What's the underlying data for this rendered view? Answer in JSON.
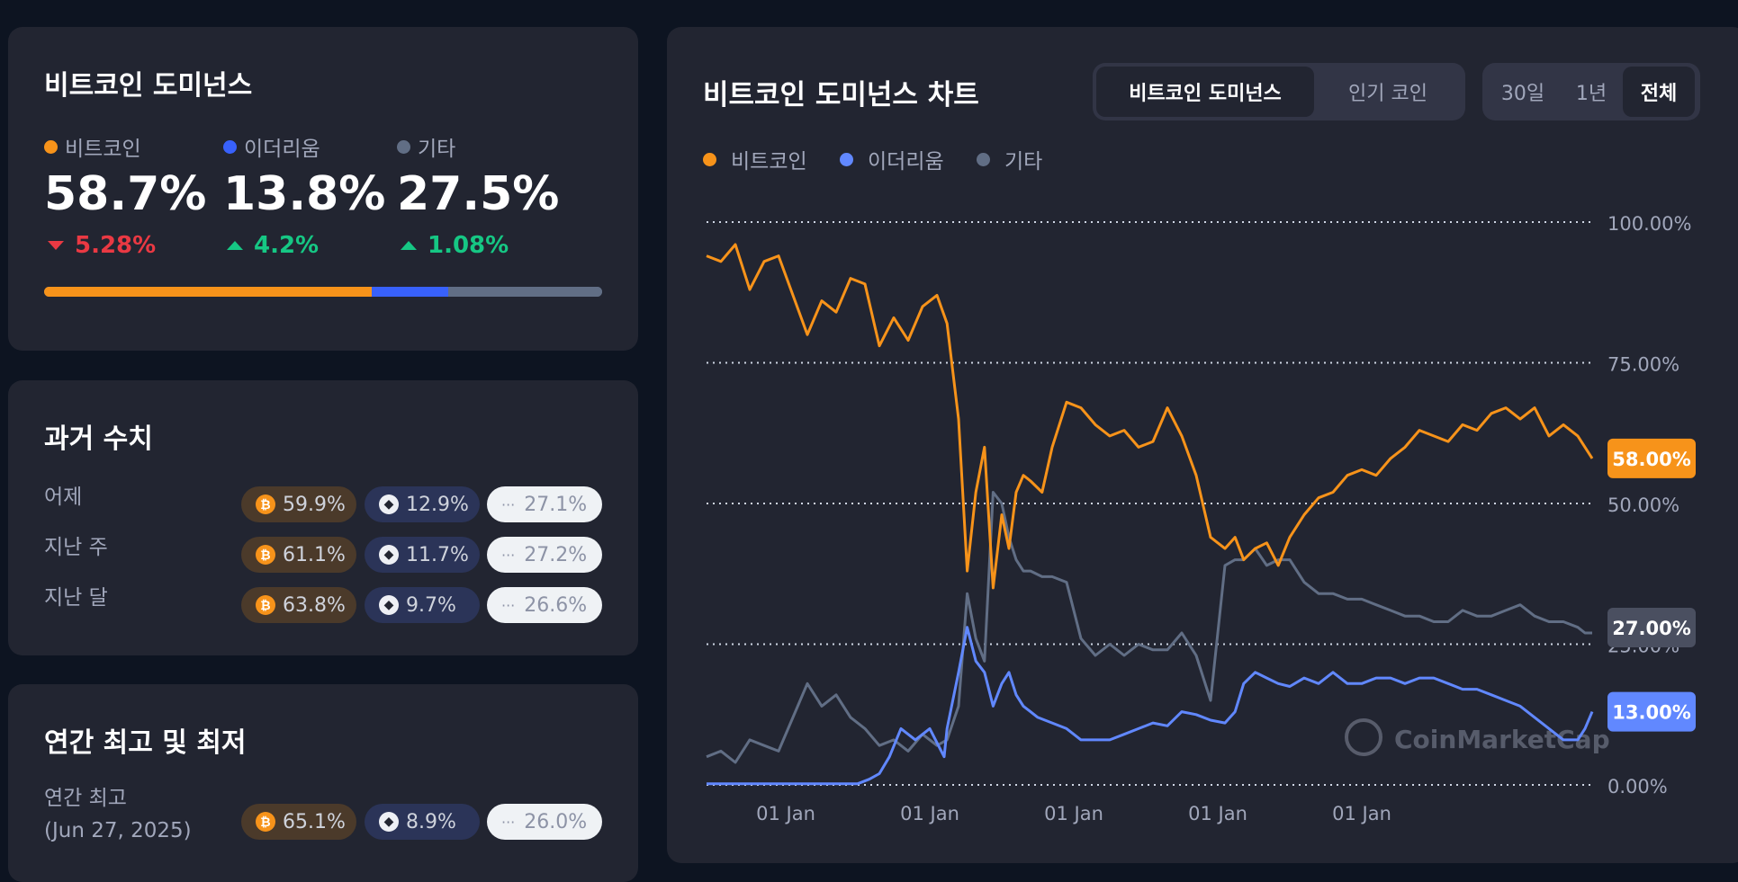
{
  "dominance": {
    "title": "비트코인 도미넌스",
    "items": [
      {
        "label": "비트코인",
        "value": "58.7%",
        "change": "5.28%",
        "direction": "down",
        "color": "#f7931a"
      },
      {
        "label": "이더리움",
        "value": "13.8%",
        "change": "4.2%",
        "direction": "up",
        "color": "#3861fb"
      },
      {
        "label": "기타",
        "value": "27.5%",
        "change": "1.08%",
        "direction": "up",
        "color": "#616e85"
      }
    ]
  },
  "history": {
    "title": "과거 수치",
    "rows": [
      {
        "label": "어제",
        "btc": "59.9%",
        "eth": "12.9%",
        "other": "27.1%"
      },
      {
        "label": "지난 주",
        "btc": "61.1%",
        "eth": "11.7%",
        "other": "27.2%"
      },
      {
        "label": "지난 달",
        "btc": "63.8%",
        "eth": "9.7%",
        "other": "26.6%"
      }
    ]
  },
  "yearly": {
    "title": "연간 최고 및 최저",
    "row_label": "연간 최고",
    "row_date": "(Jun 27, 2025)",
    "btc": "65.1%",
    "eth": "8.9%",
    "other": "26.0%"
  },
  "chart_panel": {
    "title": "비트코인 도미넌스 차트",
    "tabs": [
      {
        "label": "비트코인 도미넌스",
        "active": true
      },
      {
        "label": "인기 코인",
        "active": false
      }
    ],
    "ranges": [
      {
        "label": "30일",
        "active": false
      },
      {
        "label": "1년",
        "active": false
      },
      {
        "label": "전체",
        "active": true
      }
    ],
    "watermark": "CoinMarketCap"
  },
  "chart_data": {
    "type": "line",
    "ylim": [
      0,
      100
    ],
    "y_ticks": [
      "100.00%",
      "75.00%",
      "50.00%",
      "25.00%",
      "0.00%"
    ],
    "y_tick_values": [
      100,
      75,
      50,
      25,
      0
    ],
    "x_tick_labels": [
      "01 Jan",
      "01 Jan",
      "01 Jan",
      "01 Jan",
      "01 Jan"
    ],
    "x_tick_positions": [
      2017,
      2018,
      2019,
      2020,
      2021
    ],
    "x_range": [
      2016.45,
      2022.6
    ],
    "legend_position": "top-left",
    "grid": true,
    "series": [
      {
        "name": "비트코인",
        "color": "#f7931a",
        "last_label": "58.00%",
        "x": [
          2016.45,
          2016.55,
          2016.65,
          2016.75,
          2016.85,
          2016.95,
          2017.05,
          2017.15,
          2017.25,
          2017.35,
          2017.45,
          2017.55,
          2017.65,
          2017.75,
          2017.85,
          2017.95,
          2018.05,
          2018.12,
          2018.2,
          2018.26,
          2018.32,
          2018.38,
          2018.44,
          2018.5,
          2018.55,
          2018.6,
          2018.65,
          2018.7,
          2018.78,
          2018.85,
          2018.95,
          2019.05,
          2019.15,
          2019.25,
          2019.35,
          2019.45,
          2019.55,
          2019.65,
          2019.75,
          2019.85,
          2019.95,
          2020.05,
          2020.12,
          2020.18,
          2020.26,
          2020.34,
          2020.42,
          2020.5,
          2020.6,
          2020.7,
          2020.8,
          2020.9,
          2021.0,
          2021.1,
          2021.2,
          2021.3,
          2021.4,
          2021.5,
          2021.6,
          2021.7,
          2021.8,
          2021.9,
          2022.0,
          2022.1,
          2022.2,
          2022.3,
          2022.4,
          2022.5,
          2022.55,
          2022.6
        ],
        "y": [
          94,
          93,
          96,
          88,
          93,
          94,
          87,
          80,
          86,
          84,
          90,
          89,
          78,
          83,
          79,
          85,
          87,
          82,
          65,
          38,
          52,
          60,
          35,
          48,
          42,
          52,
          55,
          54,
          52,
          60,
          68,
          67,
          64,
          62,
          63,
          60,
          61,
          67,
          62,
          55,
          44,
          42,
          44,
          40,
          42,
          43,
          39,
          44,
          48,
          51,
          52,
          55,
          56,
          55,
          58,
          60,
          63,
          62,
          61,
          64,
          63,
          66,
          67,
          65,
          67,
          62,
          64,
          62,
          60,
          58
        ]
      },
      {
        "name": "이더리움",
        "color": "#6188ff",
        "last_label": "13.00%",
        "x": [
          2016.45,
          2016.7,
          2017.0,
          2017.3,
          2017.5,
          2017.58,
          2017.65,
          2017.72,
          2017.8,
          2017.9,
          2018.0,
          2018.1,
          2018.12,
          2018.2,
          2018.26,
          2018.32,
          2018.38,
          2018.44,
          2018.5,
          2018.55,
          2018.6,
          2018.65,
          2018.75,
          2018.85,
          2018.95,
          2019.05,
          2019.15,
          2019.25,
          2019.35,
          2019.45,
          2019.55,
          2019.65,
          2019.75,
          2019.85,
          2019.95,
          2020.05,
          2020.12,
          2020.18,
          2020.26,
          2020.34,
          2020.42,
          2020.5,
          2020.6,
          2020.7,
          2020.8,
          2020.9,
          2021.0,
          2021.1,
          2021.2,
          2021.3,
          2021.4,
          2021.5,
          2021.6,
          2021.7,
          2021.8,
          2021.9,
          2022.0,
          2022.1,
          2022.2,
          2022.3,
          2022.4,
          2022.5,
          2022.55,
          2022.6
        ],
        "y": [
          0.2,
          0.2,
          0.2,
          0.2,
          0.2,
          1.0,
          2.0,
          5.0,
          10.0,
          8.0,
          10.0,
          5.0,
          10.0,
          20.0,
          28.0,
          22.0,
          20.0,
          14.0,
          18.0,
          20.0,
          16.0,
          14.0,
          12.0,
          11.0,
          10.0,
          8.0,
          8.0,
          8.0,
          9.0,
          10.0,
          11.0,
          10.5,
          13.0,
          12.5,
          11.5,
          11.0,
          13.0,
          18.0,
          20.0,
          19.0,
          18.0,
          17.5,
          19.0,
          18.0,
          20.0,
          18.0,
          18.0,
          19.0,
          19.0,
          18.0,
          19.0,
          19.0,
          18.0,
          17.0,
          17.0,
          16.0,
          15.0,
          14.0,
          12.0,
          10.0,
          8.0,
          8.0,
          10.0,
          13.0
        ]
      },
      {
        "name": "기타",
        "color": "#616e85",
        "last_label": "27.00%",
        "x": [
          2016.45,
          2016.55,
          2016.65,
          2016.75,
          2016.85,
          2016.95,
          2017.05,
          2017.15,
          2017.25,
          2017.35,
          2017.45,
          2017.55,
          2017.65,
          2017.75,
          2017.85,
          2017.95,
          2018.05,
          2018.12,
          2018.2,
          2018.26,
          2018.32,
          2018.38,
          2018.44,
          2018.5,
          2018.55,
          2018.6,
          2018.65,
          2018.7,
          2018.78,
          2018.85,
          2018.95,
          2019.05,
          2019.15,
          2019.25,
          2019.35,
          2019.45,
          2019.55,
          2019.65,
          2019.75,
          2019.85,
          2019.95,
          2020.05,
          2020.12,
          2020.18,
          2020.26,
          2020.34,
          2020.42,
          2020.5,
          2020.6,
          2020.7,
          2020.8,
          2020.9,
          2021.0,
          2021.1,
          2021.2,
          2021.3,
          2021.4,
          2021.5,
          2021.6,
          2021.7,
          2021.8,
          2021.9,
          2022.0,
          2022.1,
          2022.2,
          2022.3,
          2022.4,
          2022.5,
          2022.55,
          2022.6
        ],
        "y": [
          5,
          6,
          4,
          8,
          7,
          6,
          12,
          18,
          14,
          16,
          12,
          10,
          7,
          8,
          6,
          9,
          7,
          8,
          14,
          34,
          26,
          22,
          52,
          50,
          44,
          40,
          38,
          38,
          37,
          37,
          36,
          26,
          23,
          25,
          23,
          25,
          24,
          24,
          27,
          23,
          15,
          39,
          40,
          40,
          42,
          39,
          40,
          40,
          36,
          34,
          34,
          33,
          33,
          32,
          31,
          30,
          30,
          29,
          29,
          31,
          30,
          30,
          31,
          32,
          30,
          29,
          29,
          28,
          27,
          27
        ]
      }
    ]
  }
}
